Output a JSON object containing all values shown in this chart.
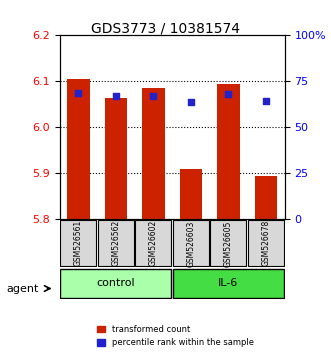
{
  "title": "GDS3773 / 10381574",
  "samples": [
    "GSM526561",
    "GSM526562",
    "GSM526602",
    "GSM526603",
    "GSM526605",
    "GSM526678"
  ],
  "groups": [
    "control",
    "control",
    "control",
    "IL-6",
    "IL-6",
    "IL-6"
  ],
  "bar_values": [
    6.105,
    6.065,
    6.085,
    5.91,
    6.095,
    5.895
  ],
  "percentile_values": [
    6.075,
    6.068,
    6.068,
    6.055,
    6.073,
    6.058
  ],
  "bar_bottom": 5.8,
  "ylim": [
    5.8,
    6.2
  ],
  "yticks_left": [
    5.8,
    5.9,
    6.0,
    6.1,
    6.2
  ],
  "yticks_right": [
    0,
    25,
    50,
    75,
    100
  ],
  "bar_color": "#cc2200",
  "dot_color": "#2222cc",
  "control_color": "#aaffaa",
  "il6_color": "#44dd44",
  "group_label_control": "control",
  "group_label_il6": "IL-6",
  "agent_label": "agent",
  "legend_bar": "transformed count",
  "legend_dot": "percentile rank within the sample",
  "bar_width": 0.6,
  "right_ylim": [
    0,
    100
  ],
  "right_yticks": [
    0,
    25,
    50,
    75,
    100
  ],
  "right_yticklabels": [
    "0",
    "25",
    "50",
    "75",
    "100%"
  ]
}
